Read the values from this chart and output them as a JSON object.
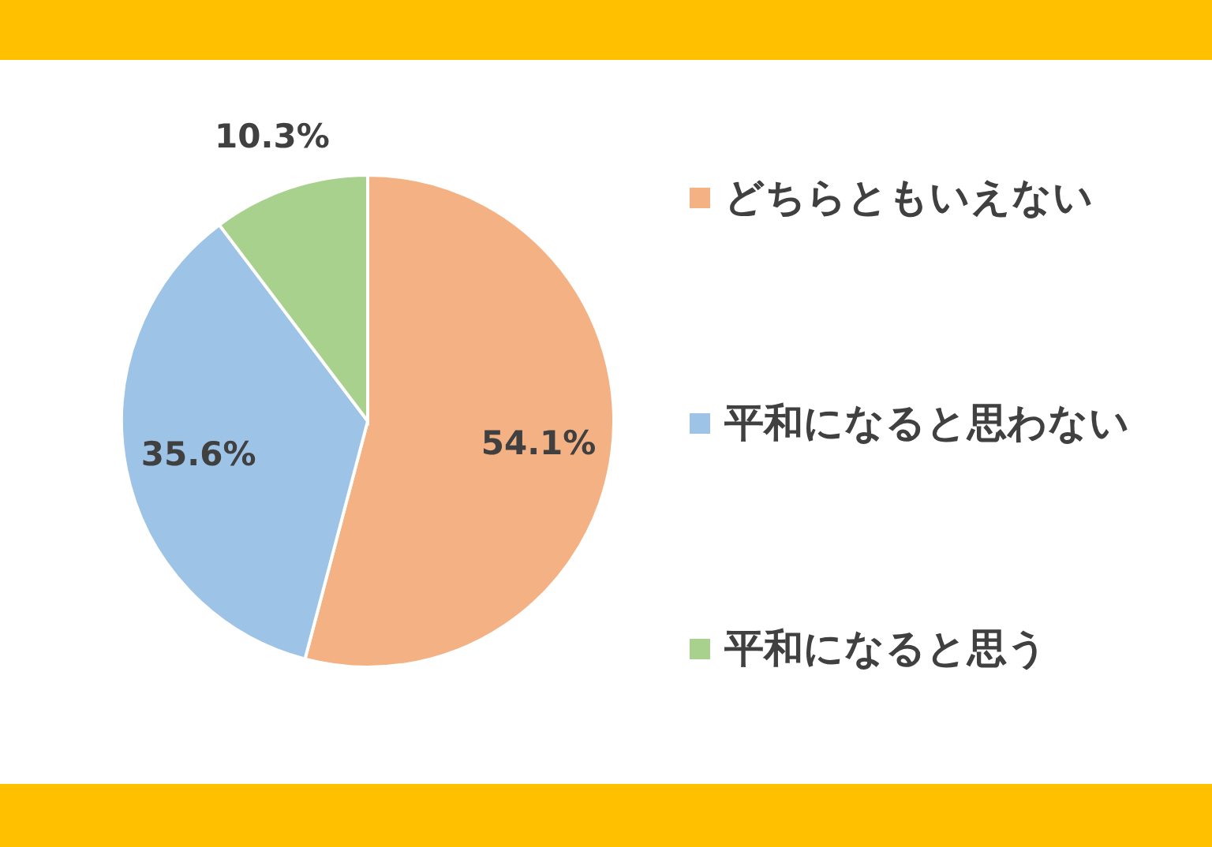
{
  "chart_data": {
    "type": "pie",
    "categories": [
      "どちらともいえない",
      "平和になると思わない",
      "平和になると思う"
    ],
    "values": [
      54.1,
      35.6,
      10.3
    ],
    "colors": [
      "#f4b183",
      "#9dc3e6",
      "#a9d18e"
    ],
    "value_labels": [
      "54.1%",
      "35.6%",
      "10.3%"
    ],
    "legend": "right"
  }
}
